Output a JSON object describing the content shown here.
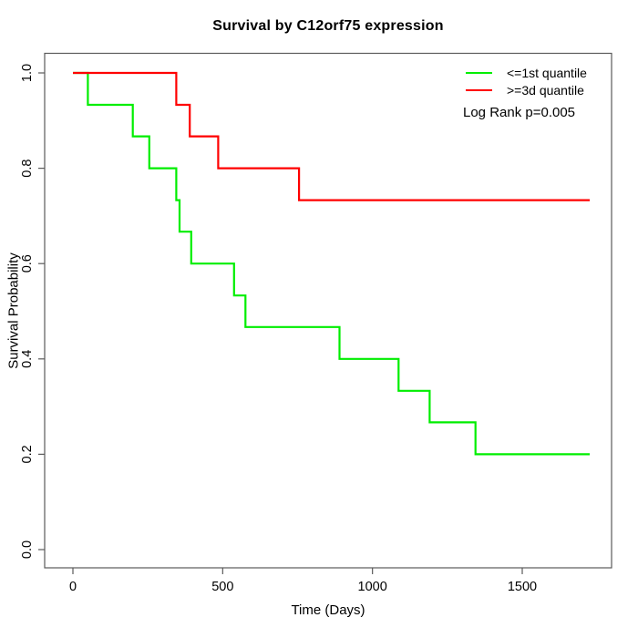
{
  "title": "Survival by C12orf75 expression",
  "legend": {
    "items": [
      {
        "label": "<=1st quantile",
        "color": "#00ee00"
      },
      {
        "label": ">=3d quantile",
        "color": "#ff0000"
      }
    ],
    "annotation": "Log Rank p=0.005"
  },
  "chart_data": {
    "type": "line",
    "subtype": "kaplan-meier-step",
    "title": "Survival by C12orf75 expression",
    "xlabel": "Time (Days)",
    "ylabel": "Survival Probability",
    "xlim": [
      0,
      1800
    ],
    "ylim": [
      0,
      1.04
    ],
    "grid": false,
    "legend_position": "top-right",
    "x_ticks": [
      0,
      500,
      1000,
      1500
    ],
    "x_tick_labels": [
      "0",
      "500",
      "1000",
      "1500"
    ],
    "y_ticks": [
      0.0,
      0.2,
      0.4,
      0.6,
      0.8,
      1.0
    ],
    "y_tick_labels": [
      "0.0",
      "0.2",
      "0.4",
      "0.6",
      "0.8",
      "1.0"
    ],
    "annotation": "Log Rank p=0.005",
    "series": [
      {
        "name": "<=1st quantile",
        "color": "#00ee00",
        "x": [
          0,
          50,
          200,
          255,
          345,
          356,
          395,
          538,
          576,
          890,
          1087,
          1191,
          1344,
          1725
        ],
        "y": [
          1.0,
          0.933,
          0.867,
          0.8,
          0.733,
          0.667,
          0.6,
          0.533,
          0.467,
          0.4,
          0.333,
          0.267,
          0.2,
          0.2
        ]
      },
      {
        "name": ">=3d quantile",
        "color": "#ff0000",
        "x": [
          0,
          345,
          390,
          485,
          755,
          1725
        ],
        "y": [
          1.0,
          0.933,
          0.867,
          0.8,
          0.733,
          0.733
        ]
      }
    ]
  }
}
